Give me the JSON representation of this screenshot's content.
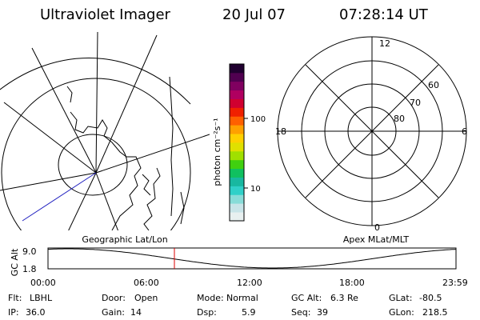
{
  "header": {
    "title": "Ultraviolet Imager",
    "date": "20 Jul 07",
    "time": "07:28:14 UT"
  },
  "left_panel": {
    "label": "Geographic Lat/Lon"
  },
  "right_panel": {
    "label": "Apex MLat/MLT",
    "mlt_labels": {
      "top": "12",
      "left": "18",
      "right": "6",
      "bottom": "0"
    },
    "mlat_labels": [
      "60",
      "70",
      "80"
    ]
  },
  "colorbar": {
    "unit_label": "photon cm⁻²s⁻¹",
    "ticks": [
      "100",
      "10"
    ],
    "colors": [
      "#e8f0f0",
      "#c8e4e8",
      "#88dcd8",
      "#30d0c8",
      "#18b8a0",
      "#10c060",
      "#40d010",
      "#a0e000",
      "#e0e000",
      "#ffd000",
      "#ffa000",
      "#ff6000",
      "#f02000",
      "#d00030",
      "#b00060",
      "#800060",
      "#500050",
      "#200030"
    ]
  },
  "timeline": {
    "axis_label": "GC Alt",
    "y_ticks": [
      "9.0",
      "1.8"
    ],
    "x_ticks": [
      "00:00",
      "06:00",
      "12:00",
      "18:00",
      "23:59"
    ],
    "marker_color": "#dd0000",
    "curve_color": "#000000",
    "current_time_fraction": 0.3099
  },
  "status": {
    "row1": [
      {
        "label": "Flt:",
        "value": "LBHL"
      },
      {
        "label": "Door:",
        "value": "Open"
      },
      {
        "label": "Mode:",
        "value": "Normal"
      },
      {
        "label": "GC Alt:",
        "value": "6.3 Re"
      },
      {
        "label": "GLat:",
        "value": "-80.5"
      }
    ],
    "row2": [
      {
        "label": "IP:",
        "value": "36.0"
      },
      {
        "label": "Gain:",
        "value": "14"
      },
      {
        "label": "Dsp:",
        "value": "5.9"
      },
      {
        "label": "Seq:",
        "value": "39"
      },
      {
        "label": "GLon:",
        "value": "218.5"
      }
    ]
  }
}
